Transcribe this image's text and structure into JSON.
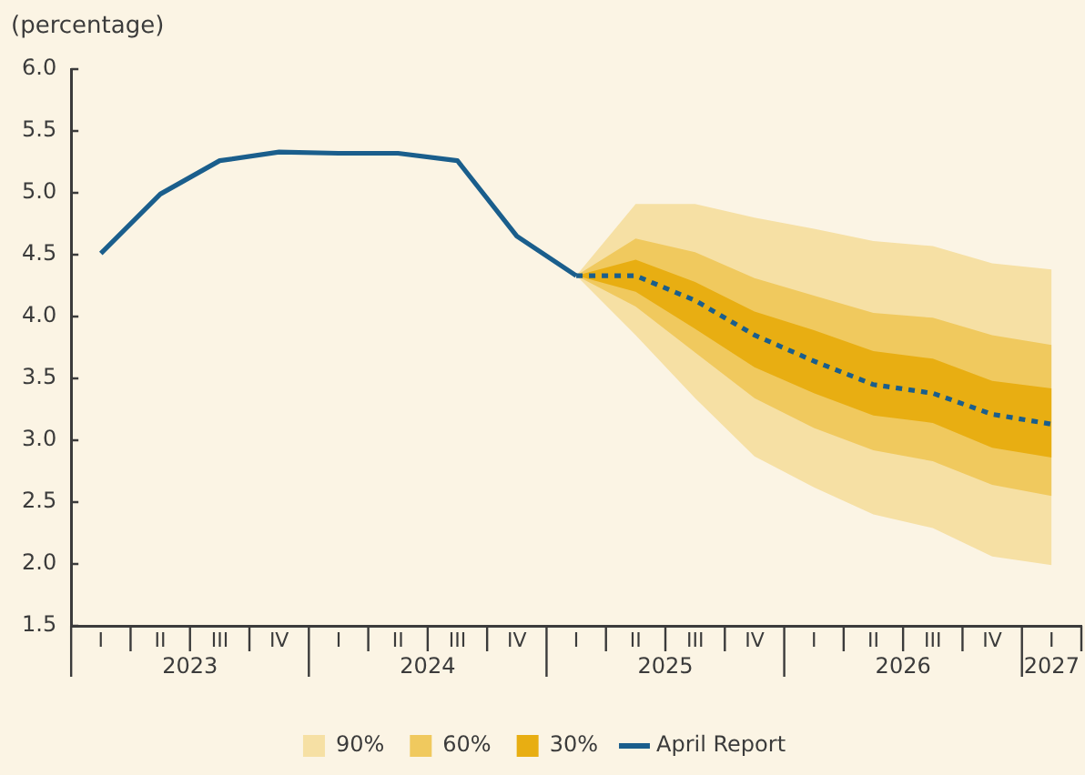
{
  "chart_data": {
    "type": "line",
    "ylabel": "(percentage)",
    "categories": [
      "I",
      "II",
      "III",
      "IV",
      "I",
      "II",
      "III",
      "IV",
      "I",
      "II",
      "III",
      "IV",
      "I",
      "II",
      "III",
      "IV",
      "I"
    ],
    "annotations": [
      "2023",
      "2024",
      "2025",
      "2026",
      "2027"
    ],
    "ylim": [
      1.5,
      6.0
    ],
    "yticks": [
      {
        "value": 1.5,
        "label": "1.5"
      },
      {
        "value": 2,
        "label": "2.0"
      },
      {
        "value": 2.5,
        "label": "2.5"
      },
      {
        "value": 3,
        "label": "3.0"
      },
      {
        "value": 3.5,
        "label": "3.5"
      },
      {
        "value": 4,
        "label": "4.0"
      },
      {
        "value": 4.5,
        "label": "4.5"
      },
      {
        "value": 5,
        "label": "5.0"
      },
      {
        "value": 5.5,
        "label": "5.5"
      },
      {
        "value": 6,
        "label": "6.0"
      }
    ],
    "grid": false,
    "legend": "bottom",
    "marker": "none",
    "series": [
      {
        "name": "90%",
        "type": "area",
        "color": "#f6e0a4",
        "values": [
          null,
          null,
          null,
          null,
          null,
          null,
          null,
          null,
          null,
          null,
          null,
          null,
          null,
          null,
          null,
          null,
          null
        ],
        "lower": [
          null,
          null,
          null,
          null,
          null,
          null,
          null,
          null,
          4.33,
          3.85,
          3.34,
          2.87,
          2.62,
          2.4,
          2.29,
          2.06,
          1.99
        ],
        "upper": [
          null,
          null,
          null,
          null,
          null,
          null,
          null,
          null,
          4.33,
          4.91,
          4.91,
          4.8,
          4.71,
          4.61,
          4.57,
          4.43,
          4.38
        ]
      },
      {
        "name": "60%",
        "type": "area",
        "color": "#f0c95e",
        "values": [
          null,
          null,
          null,
          null,
          null,
          null,
          null,
          null,
          null,
          null,
          null,
          null,
          null,
          null,
          null,
          null,
          null
        ],
        "lower": [
          null,
          null,
          null,
          null,
          null,
          null,
          null,
          null,
          4.33,
          4.08,
          3.71,
          3.34,
          3.1,
          2.92,
          2.83,
          2.64,
          2.55
        ],
        "upper": [
          null,
          null,
          null,
          null,
          null,
          null,
          null,
          null,
          4.33,
          4.63,
          4.52,
          4.31,
          4.17,
          4.03,
          3.99,
          3.85,
          3.77
        ]
      },
      {
        "name": "30%",
        "type": "area",
        "color": "#e8ae12",
        "values": [
          null,
          null,
          null,
          null,
          null,
          null,
          null,
          null,
          null,
          null,
          null,
          null,
          null,
          null,
          null,
          null,
          null
        ],
        "lower": [
          null,
          null,
          null,
          null,
          null,
          null,
          null,
          null,
          4.33,
          4.2,
          3.9,
          3.59,
          3.38,
          3.2,
          3.14,
          2.94,
          2.86
        ],
        "upper": [
          null,
          null,
          null,
          null,
          null,
          null,
          null,
          null,
          4.33,
          4.46,
          4.28,
          4.04,
          3.89,
          3.72,
          3.66,
          3.48,
          3.42
        ]
      },
      {
        "name": "April Report",
        "type": "line",
        "color": "#1a5e8c",
        "line_style": "solid",
        "values": [
          4.51,
          4.99,
          5.26,
          5.33,
          5.32,
          5.32,
          5.26,
          4.65,
          4.33,
          null,
          null,
          null,
          null,
          null,
          null,
          null,
          null
        ]
      },
      {
        "type": "line",
        "color": "#1a5e8c",
        "line_style": "dotted",
        "values": [
          null,
          null,
          null,
          null,
          null,
          null,
          null,
          null,
          4.33,
          4.33,
          4.13,
          3.85,
          3.64,
          3.45,
          3.38,
          3.21,
          3.13
        ]
      }
    ]
  }
}
